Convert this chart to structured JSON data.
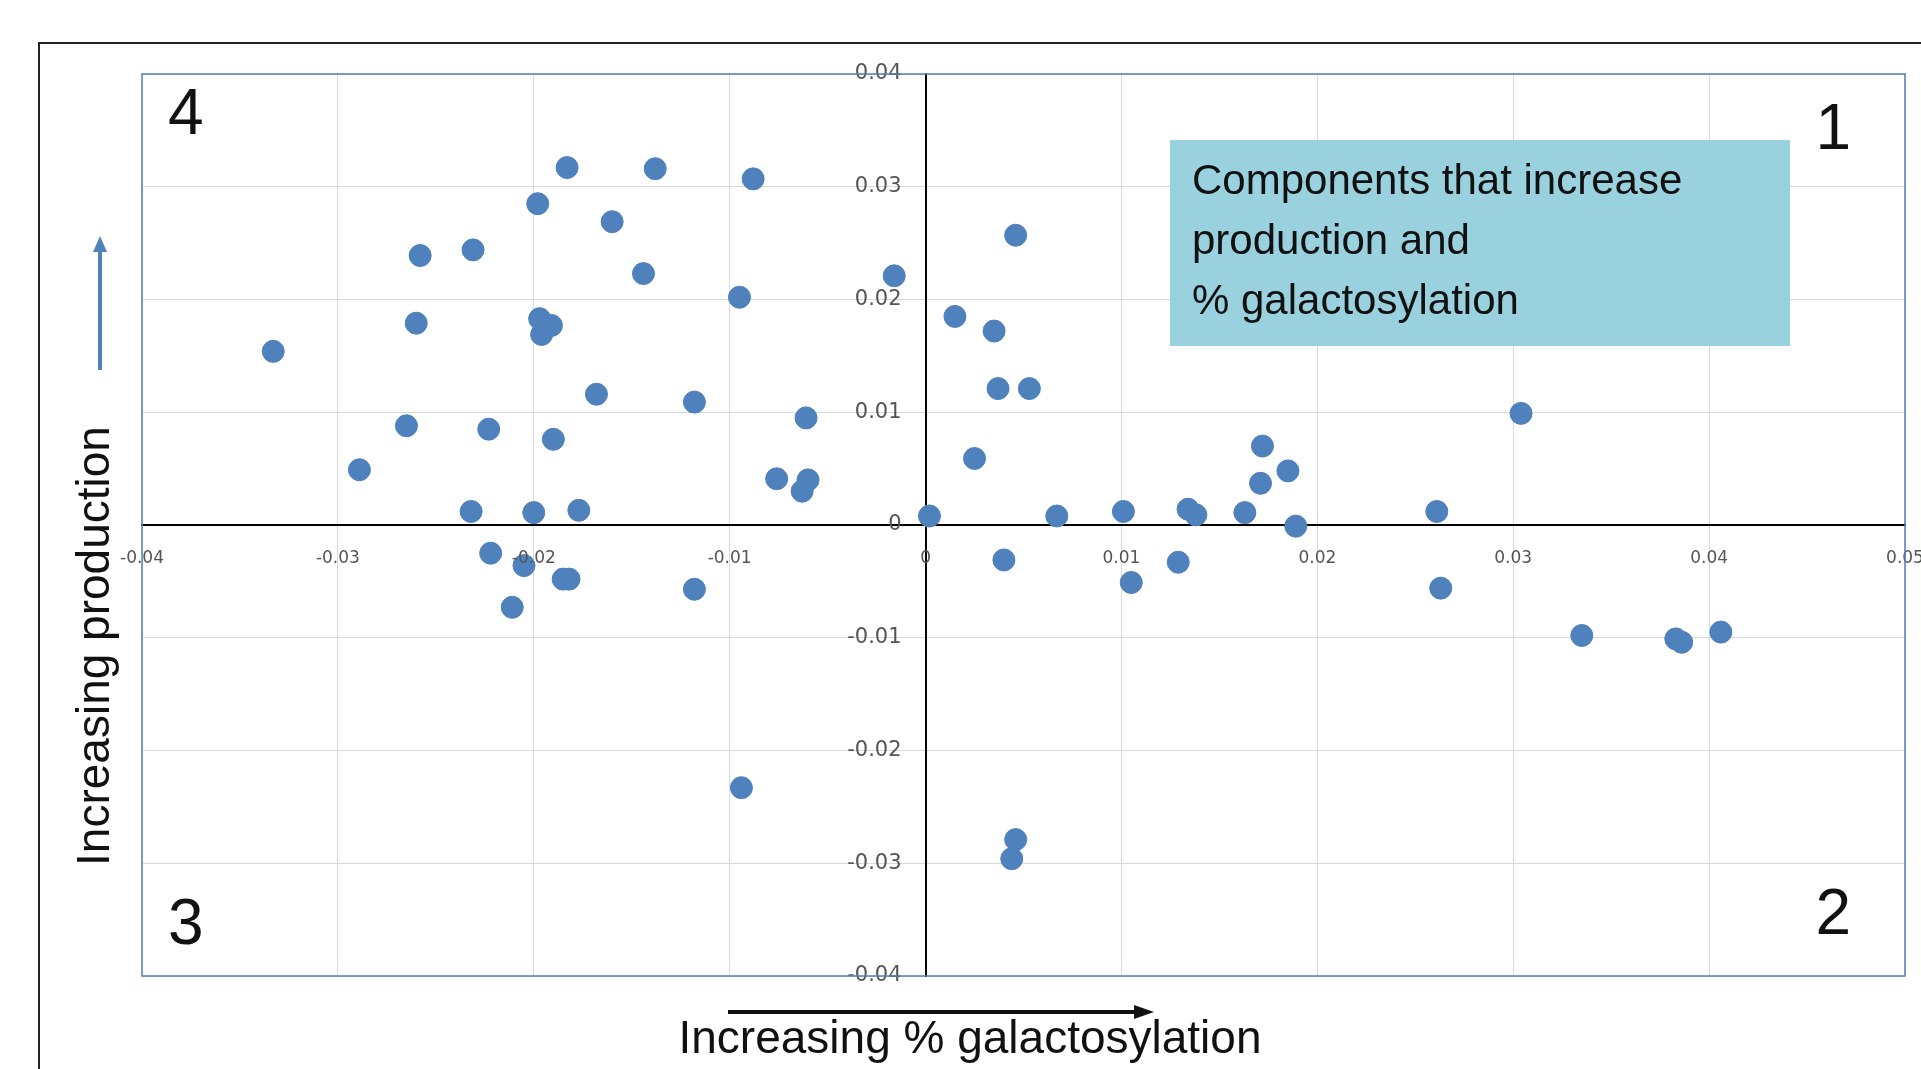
{
  "chart_data": {
    "type": "scatter",
    "xlabel": "Increasing % galactosylation",
    "ylabel": "Increasing production",
    "annotations": [
      "1",
      "2",
      "3",
      "4",
      "Components that increase\nproduction and\n% galactosylation"
    ],
    "xlim": [
      -0.04,
      0.05
    ],
    "xticks": [
      -0.04,
      -0.03,
      -0.02,
      -0.01,
      0,
      0.01,
      0.02,
      0.03,
      0.04,
      0.05
    ],
    "ylim": [
      -0.04,
      0.04
    ],
    "yticks": [
      -0.04,
      -0.03,
      -0.02,
      -0.01,
      0,
      0.01,
      0.02,
      0.03,
      0.04
    ],
    "grid": true,
    "legend": false,
    "marker": "circle",
    "series": [
      {
        "color": "#4f81bd",
        "x": [
          -0.0183,
          -0.0138,
          -0.0088,
          -0.0198,
          -0.016,
          -0.0258,
          -0.0231,
          -0.0144,
          -0.0016,
          -0.0095,
          -0.026,
          -0.0197,
          -0.0191,
          -0.0196,
          -0.0333,
          -0.0168,
          -0.0118,
          -0.0061,
          -0.0265,
          -0.0223,
          -0.019,
          -0.0289,
          -0.0076,
          -0.006,
          -0.0063,
          -0.0232,
          -0.02,
          -0.0177,
          0.0046,
          0.0015,
          0.0035,
          0.0037,
          0.0053,
          0.0304,
          0.0025,
          0.0172,
          0.0171,
          0.0185,
          0.0002,
          0.0067,
          0.0101,
          0.0134,
          0.0138,
          0.0163,
          0.0189,
          0.0261,
          -0.0222,
          -0.0205,
          -0.0185,
          -0.0182,
          -0.0211,
          -0.0118,
          -0.0094,
          0.004,
          0.0105,
          0.0129,
          0.0263,
          0.0335,
          0.0383,
          0.0386,
          0.0406,
          0.0046,
          0.0044
        ],
        "values": [
          0.0317,
          0.0316,
          0.0307,
          0.0285,
          0.0269,
          0.0239,
          0.0244,
          0.0223,
          0.0221,
          0.0202,
          0.0179,
          0.0183,
          0.0177,
          0.0169,
          0.0154,
          0.0116,
          0.0109,
          0.0095,
          0.0088,
          0.0085,
          0.0076,
          0.0049,
          0.0041,
          0.004,
          0.003,
          0.0012,
          0.0011,
          0.0013,
          0.0257,
          0.0185,
          0.0172,
          0.0121,
          0.0121,
          0.0099,
          0.0059,
          0.007,
          0.0037,
          0.0048,
          0.0008,
          0.0008,
          0.0012,
          0.0014,
          0.0009,
          0.0011,
          -0.0001,
          0.0012,
          -0.0025,
          -0.0036,
          -0.0048,
          -0.0048,
          -0.0073,
          -0.0057,
          -0.0233,
          -0.0031,
          -0.0051,
          -0.0033,
          -0.0056,
          -0.0098,
          -0.0101,
          -0.0104,
          -0.0095,
          -0.0279,
          -0.0296
        ]
      }
    ]
  }
}
